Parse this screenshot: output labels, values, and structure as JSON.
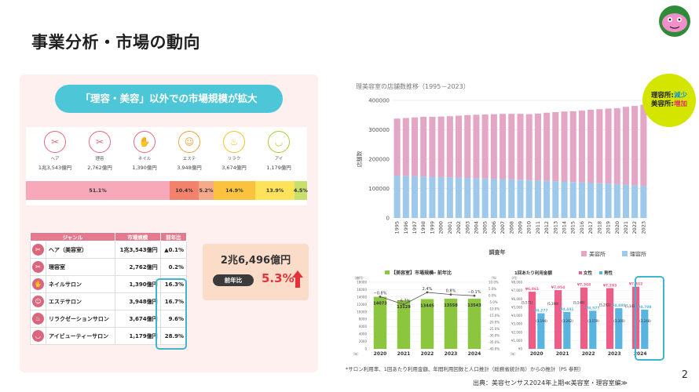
{
  "page": {
    "title": "事業分析・市場の動向",
    "number": "2",
    "source": "出典：美容センサス2024年上期≪美容室・理容室編≫",
    "footnote": "*サロン利用率、1回あたり利用金額、年間利用回数と人口推計（総務省統計局）からの推計（P5 参照）"
  },
  "banner": "「理容・美容」以外での市場規模が拡大",
  "categories": [
    {
      "name": "ヘア",
      "value": "1兆3,543億円",
      "icon": "hair-icon",
      "color": "#e8677d"
    },
    {
      "name": "理容",
      "value": "2,762億円",
      "icon": "barber-icon",
      "color": "#e8677d"
    },
    {
      "name": "ネイル",
      "value": "1,390億円",
      "icon": "nail-icon",
      "color": "#e8677d"
    },
    {
      "name": "エステ",
      "value": "3,948億円",
      "icon": "esthetic-icon",
      "color": "#f2a33a"
    },
    {
      "name": "リラク",
      "value": "3,674億円",
      "icon": "relax-icon",
      "color": "#f2c12a"
    },
    {
      "name": "アイ",
      "value": "1,179億円",
      "icon": "eye-icon",
      "color": "#a4cf2d"
    }
  ],
  "share_bar": [
    {
      "label": "51.1%",
      "value": 51.1,
      "color": "#f7a9b9"
    },
    {
      "label": "10.4%",
      "value": 10.4,
      "color": "#f3826c"
    },
    {
      "label": "5.2%",
      "value": 5.2,
      "color": "#f6a98b"
    },
    {
      "label": "14.9%",
      "value": 14.9,
      "color": "#fbc23f"
    },
    {
      "label": "13.9%",
      "value": 13.9,
      "color": "#fde25a"
    },
    {
      "label": "4.5%",
      "value": 4.5,
      "color": "#c6e06b"
    }
  ],
  "table": {
    "headers": [
      "ジャンル",
      "市場規模",
      "前年比"
    ],
    "rows": [
      {
        "genre": "ヘア（美容室）",
        "size": "1兆3,543億円",
        "yoy": "▲0.1%"
      },
      {
        "genre": "理容室",
        "size": "2,762億円",
        "yoy": "0.2%"
      },
      {
        "genre": "ネイルサロン",
        "size": "1,390億円",
        "yoy": "16.3%"
      },
      {
        "genre": "エステサロン",
        "size": "3,948億円",
        "yoy": "16.7%"
      },
      {
        "genre": "リラクゼーションサロン",
        "size": "3,674億円",
        "yoy": "9.6%"
      },
      {
        "genre": "アイビューティーサロン",
        "size": "1,179億円",
        "yoy": "28.9%"
      }
    ]
  },
  "total": {
    "value": "2兆6,496億円",
    "yoy_label": "前年比",
    "yoy_value": "5.3%"
  },
  "badge": {
    "line1_prefix": "理容所:",
    "line1_suffix": "減少",
    "line2_prefix": "美容所:",
    "line2_suffix": "増加"
  },
  "chart_data": [
    {
      "type": "bar",
      "title": "理美容室の店舗数推移（1995－2023）",
      "xlabel": "調査年",
      "ylabel": "店舗数",
      "ylim": [
        0,
        400000
      ],
      "yticks": [
        0,
        100000,
        200000,
        300000,
        400000
      ],
      "categories": [
        "1995",
        "1996",
        "1997",
        "1998",
        "1999",
        "2000",
        "2001",
        "2002",
        "2003",
        "2004",
        "2005",
        "2006",
        "2007",
        "2008",
        "2009",
        "2010",
        "2011",
        "2012",
        "2013",
        "2014",
        "2015",
        "2016",
        "2017",
        "2018",
        "2019",
        "2020",
        "2021",
        "2022",
        "2023"
      ],
      "stacked": true,
      "legend": "bottom",
      "series": [
        {
          "name": "理容所",
          "color": "#9ec9ea",
          "values": [
            144000,
            143000,
            142000,
            141000,
            140000,
            139000,
            138000,
            137000,
            136000,
            135000,
            134000,
            133000,
            132000,
            131000,
            130000,
            129000,
            127000,
            126000,
            125000,
            124000,
            122000,
            121000,
            120000,
            118000,
            117000,
            115000,
            113000,
            111000,
            109000
          ]
        },
        {
          "name": "美容所",
          "color": "#e3a6c4",
          "values": [
            194000,
            197000,
            200000,
            203000,
            204000,
            206000,
            208000,
            211000,
            214000,
            216000,
            218000,
            220000,
            222000,
            223000,
            224000,
            224000,
            228000,
            232000,
            235000,
            238000,
            241000,
            244000,
            248000,
            252000,
            255000,
            258000,
            265000,
            270000,
            276000
          ]
        }
      ]
    },
    {
      "type": "bar",
      "title": "【美容室】市場規模",
      "legend_line": "前年比",
      "ylim": [
        0,
        18000
      ],
      "yticks": [
        0,
        2000,
        4000,
        6000,
        8000,
        10000,
        12000,
        14000,
        16000,
        18000
      ],
      "y_unit": "（億円）",
      "y2_unit": "（%）",
      "y2ticks": [
        "10.0%",
        "5.0%",
        "0.0%",
        "-5.0%",
        "-10.0%",
        "-15.0%",
        "-20.0%",
        "-25.0%",
        "-30.0%",
        "-35.0%",
        "-40.0%"
      ],
      "x_unit": "（年）",
      "categories": [
        "2020",
        "2021",
        "2022",
        "2023",
        "2024"
      ],
      "values": [
        14073,
        13129,
        13445,
        13558,
        13543
      ],
      "line": [
        -0.8,
        -6.7,
        2.4,
        0.8,
        -0.1
      ],
      "line_labels": [
        "−0.8%",
        "−6.7%",
        "2.4%",
        "0.8%",
        "−0.1%"
      ],
      "bar_color": "#8cc63f"
    },
    {
      "type": "bar",
      "title": "1回あたり利用金額",
      "ylim": [
        0,
        8000
      ],
      "yticks": [
        0,
        1000,
        2000,
        3000,
        4000,
        5000,
        6000,
        7000,
        8000
      ],
      "y_unit": "（円）",
      "x_unit": "（年）",
      "categories": [
        "2020",
        "2021",
        "2022",
        "2023",
        "2024"
      ],
      "series": [
        {
          "name": "女性",
          "color": "#ee5c88",
          "values": [
            6861,
            7054,
            7368,
            7293,
            7462
          ],
          "labels": [
            "¥6,861",
            "¥7,054",
            "¥7,368",
            "¥7,293",
            "¥7,462"
          ]
        },
        {
          "name": "男性",
          "color": "#5ab4e0",
          "values": [
            4277,
            4441,
            4577,
            4880,
            4708
          ],
          "labels": [
            "¥4,277",
            "¥4,441",
            "¥4,577",
            "¥4,880",
            "¥4,708"
          ]
        },
        {
          "name": "全体",
          "values": [
            5571,
            5398,
            5548,
            5292,
            5143
          ],
          "labels": [
            "(5,571)",
            "(5,398)",
            "(5,548)",
            "(5,292)",
            "(5,143)"
          ]
        }
      ],
      "extra_labels": [
        "(3,194)",
        "(3,262)",
        "(3,159)",
        "(3,300)",
        "(3,248)"
      ]
    }
  ]
}
